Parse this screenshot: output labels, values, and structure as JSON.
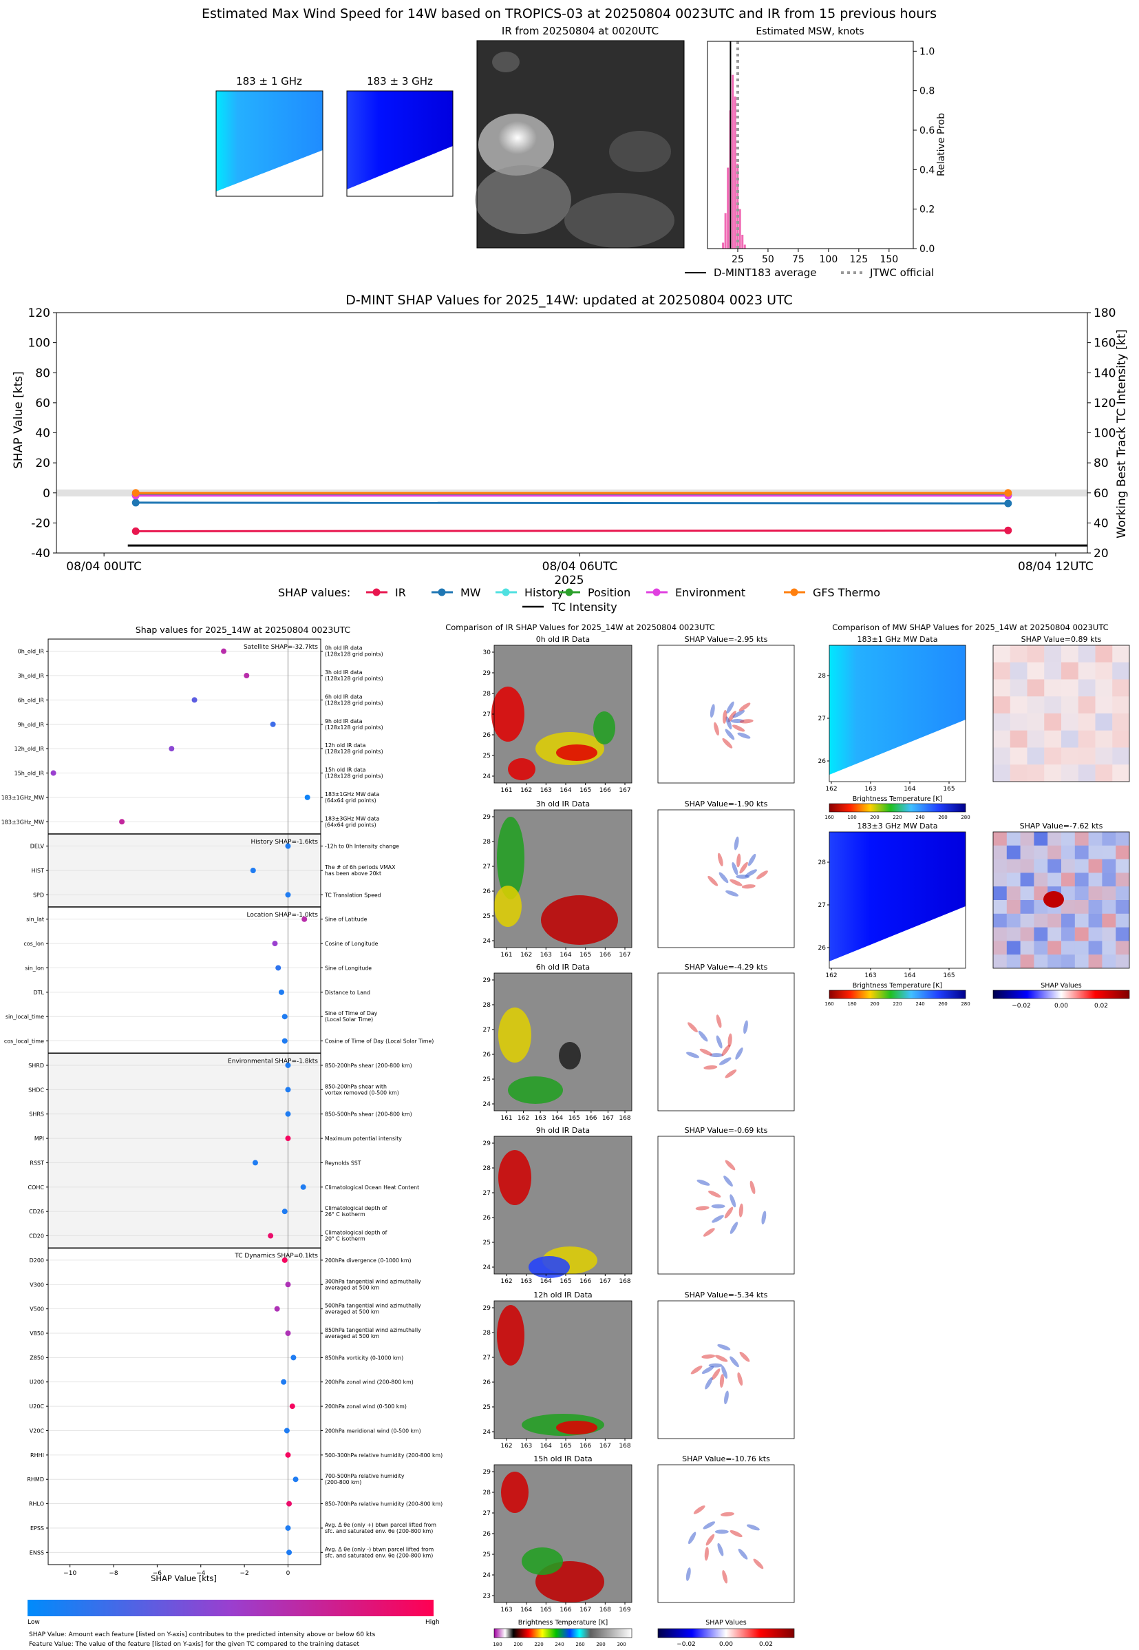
{
  "suptitle": "Estimated Max Wind Speed for 14W based on TROPICS-03 at 20250804 0023UTC and IR from 15 previous hours",
  "top_panels": {
    "mw1_title": "183 ± 1 GHz",
    "mw3_title": "183 ± 3 GHz",
    "ir_title": "IR from 20250804 at 0020UTC",
    "hist_title": "Estimated MSW, knots",
    "hist_ylabel": "Relative Prob",
    "legend_avg": "D-MINT183 average",
    "legend_jtwc": "JTWC official"
  },
  "colors": {
    "IR": "#e8174f",
    "MW": "#1f77b4",
    "History": "#4fe0e0",
    "Position": "#2ca02c",
    "Environment": "#e040e0",
    "GFS Thermo": "#ff7f0e",
    "hist_bar": "#f06ab4"
  },
  "timeseries": {
    "title": "D-MINT SHAP Values for 2025_14W: updated at 20250804 0023 UTC",
    "ylabel_left": "SHAP Value [kts]",
    "ylabel_right": "Working Best Track TC Intensity [kt]",
    "xlabel": "2025",
    "legend_title": "SHAP values:",
    "legend_intensity": "TC Intensity"
  },
  "shap_panel": {
    "title": "Shap values for 2025_14W at 20250804 0023UTC",
    "xlabel": "SHAP Value [kts]",
    "colorbar_low": "Low",
    "colorbar_high": "High",
    "footnote1": "SHAP Value: Amount each feature [listed on Y-axis] contributes to the predicted intensity above or below 60 kts",
    "footnote2": "Feature Value: The value of the feature [listed on Y-axis] for the given TC compared to the training dataset"
  },
  "ir_compare": {
    "title": "Comparison of IR SHAP Values for 2025_14W at 20250804 0023UTC",
    "cbar_label": "Brightness Temperature [K]",
    "shap_cbar_label": "SHAP Values"
  },
  "mw_compare": {
    "title": "Comparison of MW SHAP Values for 2025_14W at 20250804 0023UTC",
    "cbar_label": "Brightness Temperature [K]",
    "shap_cbar_label": "SHAP Values"
  },
  "chart_data": [
    {
      "type": "bar",
      "title": "Estimated MSW, knots",
      "ylabel": "Relative Prob",
      "xlim": [
        0,
        170
      ],
      "ylim": [
        0,
        1.05
      ],
      "xticks": [
        25,
        50,
        75,
        100,
        125,
        150
      ],
      "yticks": [
        0.0,
        0.2,
        0.4,
        0.6,
        0.8,
        1.0
      ],
      "bins": [
        13,
        15,
        17,
        19,
        21,
        23,
        25,
        27,
        29,
        31
      ],
      "values": [
        0.03,
        0.18,
        0.41,
        0.7,
        0.88,
        0.77,
        0.43,
        0.2,
        0.07,
        0.02
      ],
      "dmint_average": 19,
      "jtwc_official": 25
    },
    {
      "type": "line",
      "title": "D-MINT SHAP Values for 2025_14W: updated at 20250804 0023 UTC",
      "x": [
        "08/04 00UTC",
        "08/04 12UTC"
      ],
      "xticks": [
        "08/04 00UTC",
        "08/04 06UTC",
        "08/04 12UTC"
      ],
      "ylim_left": [
        -40,
        120
      ],
      "ylim_right": [
        20,
        180
      ],
      "yticks_left": [
        -40,
        -20,
        0,
        20,
        40,
        60,
        80,
        100,
        120
      ],
      "yticks_right": [
        20,
        40,
        60,
        80,
        100,
        120,
        140,
        160,
        180
      ],
      "series": [
        {
          "name": "IR",
          "values": [
            -25.5,
            -25.0
          ]
        },
        {
          "name": "MW",
          "values": [
            -6.5,
            -7.0
          ]
        },
        {
          "name": "History",
          "values": [
            -1.6,
            -1.6
          ]
        },
        {
          "name": "Position",
          "values": [
            -1.2,
            -1.2
          ]
        },
        {
          "name": "Environment",
          "values": [
            -1.8,
            -1.8
          ]
        },
        {
          "name": "GFS Thermo",
          "values": [
            0.0,
            0.0
          ]
        },
        {
          "name": "TC Intensity",
          "values": [
            25,
            25
          ]
        }
      ]
    },
    {
      "type": "scatter",
      "title": "Shap values for 2025_14W at 20250804 0023UTC",
      "xlabel": "SHAP Value [kts]",
      "xlim": [
        -11,
        1.5
      ],
      "xticks": [
        -10,
        -8,
        -6,
        -4,
        -2,
        0
      ],
      "groups": [
        {
          "label": "Satellite SHAP=-32.7kts",
          "start": 0,
          "end": 8
        },
        {
          "label": "History SHAP=-1.6kts",
          "start": 8,
          "end": 11
        },
        {
          "label": "Location SHAP=-1.0kts",
          "start": 11,
          "end": 17
        },
        {
          "label": "Environmental SHAP=-1.8kts",
          "start": 17,
          "end": 25
        },
        {
          "label": "TC Dynamics SHAP=0.1kts",
          "start": 25,
          "end": 38
        }
      ],
      "features": [
        {
          "name": "0h_old_IR",
          "desc": "0h old IR data\n(128x128 grid points)",
          "shap": -2.95,
          "fv": 0.65
        },
        {
          "name": "3h_old_IR",
          "desc": "3h old IR data\n(128x128 grid points)",
          "shap": -1.9,
          "fv": 0.65
        },
        {
          "name": "6h_old_IR",
          "desc": "6h old IR data\n(128x128 grid points)",
          "shap": -4.29,
          "fv": 0.3
        },
        {
          "name": "9h_old_IR",
          "desc": "9h old IR data\n(128x128 grid points)",
          "shap": -0.69,
          "fv": 0.2
        },
        {
          "name": "12h_old_IR",
          "desc": "12h old IR data\n(128x128 grid points)",
          "shap": -5.34,
          "fv": 0.45
        },
        {
          "name": "15h_old_IR",
          "desc": "15h old IR data\n(128x128 grid points)",
          "shap": -10.76,
          "fv": 0.5
        },
        {
          "name": "183±1GHz_MW",
          "desc": "183±1GHz MW data\n(64x64 grid points)",
          "shap": 0.89,
          "fv": 0.05
        },
        {
          "name": "183±3GHz_MW",
          "desc": "183±3GHz MW data\n(64x64 grid points)",
          "shap": -7.62,
          "fv": 0.7
        },
        {
          "name": "DELV",
          "desc": "-12h to 0h Intensity change",
          "shap": 0.0,
          "fv": 0.1
        },
        {
          "name": "HIST",
          "desc": "The # of 6h periods VMAX\nhas been above 20kt",
          "shap": -1.6,
          "fv": 0.1
        },
        {
          "name": "SPD",
          "desc": "TC Translation Speed",
          "shap": 0.0,
          "fv": 0.1
        },
        {
          "name": "sin_lat",
          "desc": "Sine of Latitude",
          "shap": 0.75,
          "fv": 0.65
        },
        {
          "name": "cos_lon",
          "desc": "Cosine of Longitude",
          "shap": -0.6,
          "fv": 0.5
        },
        {
          "name": "sin_lon",
          "desc": "Sine of Longitude",
          "shap": -0.45,
          "fv": 0.15
        },
        {
          "name": "DTL",
          "desc": "Distance to Land",
          "shap": -0.3,
          "fv": 0.1
        },
        {
          "name": "sin_local_time",
          "desc": "Sine of Time of Day\n(Local Solar Time)",
          "shap": -0.15,
          "fv": 0.1
        },
        {
          "name": "cos_local_time",
          "desc": "Cosine of Time of Day (Local Solar Time)",
          "shap": -0.15,
          "fv": 0.1
        },
        {
          "name": "SHRD",
          "desc": "850-200hPa shear (200-800 km)",
          "shap": 0.0,
          "fv": 0.1
        },
        {
          "name": "SHDC",
          "desc": "850-200hPa shear with\nvortex removed (0-500 km)",
          "shap": 0.0,
          "fv": 0.1
        },
        {
          "name": "SHRS",
          "desc": "850-500hPa shear (200-800 km)",
          "shap": 0.0,
          "fv": 0.1
        },
        {
          "name": "MPI",
          "desc": "Maximum potential intensity",
          "shap": 0.0,
          "fv": 0.95
        },
        {
          "name": "RSST",
          "desc": "Reynolds SST",
          "shap": -1.5,
          "fv": 0.1
        },
        {
          "name": "COHC",
          "desc": "Climatological Ocean Heat Content",
          "shap": 0.7,
          "fv": 0.1
        },
        {
          "name": "CD26",
          "desc": "Climatological depth of\n26° C isotherm",
          "shap": -0.15,
          "fv": 0.1
        },
        {
          "name": "CD20",
          "desc": "Climatological depth of\n20° C isotherm",
          "shap": -0.8,
          "fv": 0.9
        },
        {
          "name": "D200",
          "desc": "200hPa divergence (0-1000 km)",
          "shap": -0.15,
          "fv": 0.95
        },
        {
          "name": "V300",
          "desc": "300hPa tangential wind azimuthally\naveraged at 500 km",
          "shap": 0.0,
          "fv": 0.6
        },
        {
          "name": "V500",
          "desc": "500hPa tangential wind azimuthally\naveraged at 500 km",
          "shap": -0.5,
          "fv": 0.6
        },
        {
          "name": "V850",
          "desc": "850hPa tangential wind azimuthally\naveraged at 500 km",
          "shap": 0.0,
          "fv": 0.6
        },
        {
          "name": "Z850",
          "desc": "850hPa vorticity (0-1000 km)",
          "shap": 0.25,
          "fv": 0.1
        },
        {
          "name": "U200",
          "desc": "200hPa zonal wind (200-800 km)",
          "shap": -0.2,
          "fv": 0.1
        },
        {
          "name": "U20C",
          "desc": "200hPa zonal wind (0-500 km)",
          "shap": 0.2,
          "fv": 0.95
        },
        {
          "name": "V20C",
          "desc": "200hPa meridional wind (0-500 km)",
          "shap": -0.05,
          "fv": 0.1
        },
        {
          "name": "RHHI",
          "desc": "500-300hPa relative humidity (200-800 km)",
          "shap": 0.0,
          "fv": 0.95
        },
        {
          "name": "RHMD",
          "desc": "700-500hPa relative humidity\n(200-800 km)",
          "shap": 0.35,
          "fv": 0.1
        },
        {
          "name": "RHLO",
          "desc": "850-700hPa relative humidity (200-800 km)",
          "shap": 0.05,
          "fv": 0.9
        },
        {
          "name": "EPSS",
          "desc": "Avg. Δ θe (only +) btwn parcel lifted from\nsfc. and saturated env. θe (200-800 km)",
          "shap": 0.0,
          "fv": 0.1
        },
        {
          "name": "ENSS",
          "desc": "Avg. Δ θe (only -) btwn parcel lifted from\nsfc. and saturated env. θe (200-800 km)",
          "shap": 0.05,
          "fv": 0.1
        }
      ]
    },
    {
      "type": "heatmap",
      "title": "Comparison of IR SHAP Values for 2025_14W at 20250804 0023UTC",
      "panels": [
        {
          "label": "0h old IR Data",
          "shap_label": "SHAP Value=-2.95 kts",
          "xt": [
            "161",
            "162",
            "163",
            "164",
            "165",
            "166",
            "167"
          ],
          "yt": [
            "24",
            "25",
            "26",
            "27",
            "28",
            "29",
            "30"
          ]
        },
        {
          "label": "3h old IR Data",
          "shap_label": "SHAP Value=-1.90 kts",
          "xt": [
            "161",
            "162",
            "163",
            "164",
            "165",
            "166",
            "167"
          ],
          "yt": [
            "24",
            "25",
            "26",
            "27",
            "28",
            "29"
          ]
        },
        {
          "label": "6h old IR Data",
          "shap_label": "SHAP Value=-4.29 kts",
          "xt": [
            "161",
            "162",
            "163",
            "164",
            "165",
            "166",
            "167",
            "168"
          ],
          "yt": [
            "24",
            "25",
            "26",
            "27",
            "28",
            "29"
          ]
        },
        {
          "label": "9h old IR Data",
          "shap_label": "SHAP Value=-0.69 kts",
          "xt": [
            "162",
            "163",
            "164",
            "165",
            "166",
            "167",
            "168"
          ],
          "yt": [
            "24",
            "25",
            "26",
            "27",
            "28",
            "29"
          ]
        },
        {
          "label": "12h old IR Data",
          "shap_label": "SHAP Value=-5.34 kts",
          "xt": [
            "162",
            "163",
            "164",
            "165",
            "166",
            "167",
            "168"
          ],
          "yt": [
            "24",
            "25",
            "26",
            "27",
            "28",
            "29"
          ]
        },
        {
          "label": "15h old IR Data",
          "shap_label": "SHAP Value=-10.76 kts",
          "xt": [
            "163",
            "164",
            "165",
            "166",
            "167",
            "168",
            "169"
          ],
          "yt": [
            "23",
            "24",
            "25",
            "26",
            "27",
            "28",
            "29"
          ]
        }
      ],
      "bt_ticks": [
        "180",
        "200",
        "220",
        "240",
        "260",
        "280",
        "300"
      ],
      "shap_ticks": [
        "−0.02",
        "0.00",
        "0.02"
      ]
    },
    {
      "type": "heatmap",
      "title": "Comparison of MW SHAP Values for 2025_14W at 20250804 0023UTC",
      "panels": [
        {
          "label": "183±1 GHz MW Data",
          "shap_label": "SHAP Value=0.89 kts",
          "xt": [
            "162",
            "163",
            "164",
            "165"
          ],
          "yt": [
            "26",
            "27",
            "28"
          ]
        },
        {
          "label": "183±3 GHz MW Data",
          "shap_label": "SHAP Value=-7.62 kts",
          "xt": [
            "162",
            "163",
            "164",
            "165"
          ],
          "yt": [
            "26",
            "27",
            "28"
          ]
        }
      ],
      "bt_ticks": [
        "160",
        "180",
        "200",
        "220",
        "240",
        "260",
        "280"
      ],
      "shap_ticks": [
        "−0.02",
        "0.00",
        "0.02"
      ]
    }
  ]
}
